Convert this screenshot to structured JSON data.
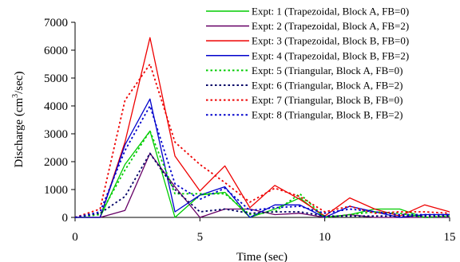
{
  "chart_data": {
    "type": "line",
    "title": "",
    "xlabel": "Time (sec)",
    "ylabel_main": "Discharge (cm",
    "ylabel_sup": "3",
    "ylabel_tail": "/sec)",
    "xlim": [
      0,
      15
    ],
    "ylim": [
      0,
      7000
    ],
    "xticks": [
      0,
      5,
      10,
      15
    ],
    "yticks": [
      0,
      1000,
      2000,
      3000,
      4000,
      5000,
      6000,
      7000
    ],
    "grid": false,
    "legend_position": "top-right",
    "x": [
      0,
      1,
      2,
      3,
      4,
      5,
      6,
      7,
      8,
      9,
      10,
      11,
      12,
      13,
      14,
      15
    ],
    "series": [
      {
        "name": "Expt: 1 (Trapezoidal, Block A, FB=0)",
        "color": "#00cc00",
        "dash": "solid",
        "values": [
          0,
          0,
          1900,
          3100,
          0,
          800,
          900,
          0,
          300,
          700,
          0,
          100,
          300,
          300,
          0,
          0
        ]
      },
      {
        "name": "Expt: 2 (Trapezoidal, Block A, FB=2)",
        "color": "#660066",
        "dash": "solid",
        "values": [
          0,
          0,
          250,
          2300,
          1100,
          0,
          300,
          300,
          100,
          150,
          0,
          100,
          0,
          0,
          0,
          0
        ]
      },
      {
        "name": "Expt: 3 (Trapezoidal, Block B, FB=0)",
        "color": "#ee0000",
        "dash": "solid",
        "values": [
          0,
          0,
          2700,
          6450,
          2200,
          950,
          1850,
          350,
          1150,
          650,
          50,
          700,
          300,
          50,
          450,
          200
        ]
      },
      {
        "name": "Expt: 4 (Trapezoidal, Block B, FB=2)",
        "color": "#0000cc",
        "dash": "solid",
        "values": [
          0,
          0,
          2600,
          4250,
          200,
          800,
          1100,
          0,
          450,
          450,
          0,
          400,
          200,
          0,
          100,
          100
        ]
      },
      {
        "name": "Expt: 5 (Triangular, Block A, FB=0)",
        "color": "#00cc00",
        "dash": "dotted",
        "values": [
          0,
          100,
          1700,
          3100,
          850,
          850,
          850,
          100,
          200,
          850,
          0,
          100,
          200,
          150,
          0,
          50
        ]
      },
      {
        "name": "Expt: 6 (Triangular, Block A, FB=2)",
        "color": "#000066",
        "dash": "dotted",
        "values": [
          0,
          150,
          750,
          2300,
          1000,
          200,
          300,
          150,
          200,
          200,
          50,
          50,
          50,
          50,
          50,
          50
        ]
      },
      {
        "name": "Expt: 7 (Triangular, Block B, FB=0)",
        "color": "#ee0000",
        "dash": "dotted",
        "values": [
          0,
          300,
          4200,
          5500,
          2700,
          1900,
          1250,
          550,
          1050,
          750,
          200,
          400,
          150,
          200,
          200,
          150
        ]
      },
      {
        "name": "Expt: 8 (Triangular, Block B, FB=2)",
        "color": "#0000cc",
        "dash": "dotted",
        "values": [
          0,
          200,
          2400,
          4000,
          1200,
          650,
          1050,
          250,
          350,
          400,
          150,
          300,
          200,
          100,
          100,
          100
        ]
      }
    ]
  }
}
